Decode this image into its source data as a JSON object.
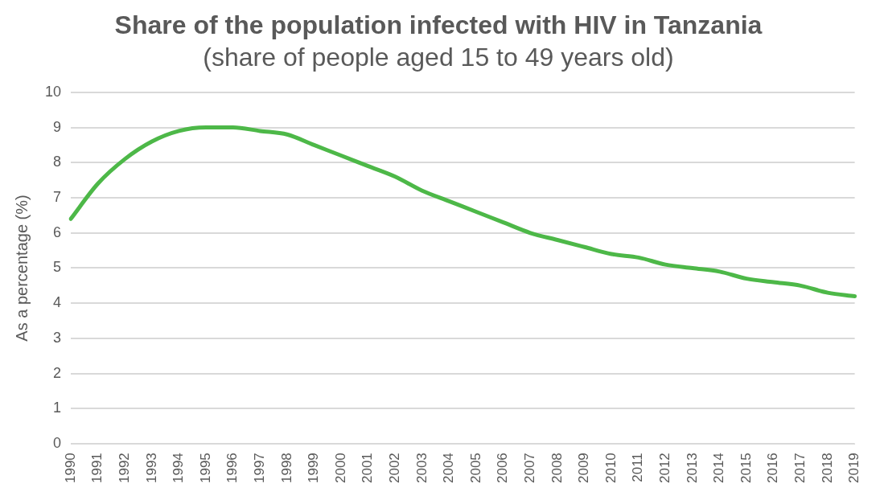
{
  "chart_data": {
    "type": "line",
    "title": "Share of the population infected with HIV in Tanzania",
    "subtitle": "(share of people aged 15 to 49 years old)",
    "ylabel": "As a percentage (%)",
    "categories": [
      "1990",
      "1991",
      "1992",
      "1993",
      "1994",
      "1995",
      "1996",
      "1997",
      "1998",
      "1999",
      "2000",
      "2001",
      "2002",
      "2003",
      "2004",
      "2005",
      "2006",
      "2007",
      "2008",
      "2009",
      "2010",
      "2011",
      "2012",
      "2013",
      "2014",
      "2015",
      "2016",
      "2017",
      "2018",
      "2019"
    ],
    "series": [
      {
        "color": "#4db848",
        "values": [
          6.4,
          7.4,
          8.1,
          8.6,
          8.9,
          9.0,
          9.0,
          8.9,
          8.8,
          8.5,
          8.2,
          7.9,
          7.6,
          7.2,
          6.9,
          6.6,
          6.3,
          6.0,
          5.8,
          5.6,
          5.4,
          5.3,
          5.1,
          5.0,
          4.9,
          4.7,
          4.6,
          4.5,
          4.3,
          4.2
        ]
      }
    ],
    "ylim": [
      0,
      10
    ],
    "yticks": [
      0,
      1,
      2,
      3,
      4,
      5,
      6,
      7,
      8,
      9,
      10
    ],
    "grid": "y",
    "legend": false,
    "marker": "none",
    "line_style": "solid"
  }
}
